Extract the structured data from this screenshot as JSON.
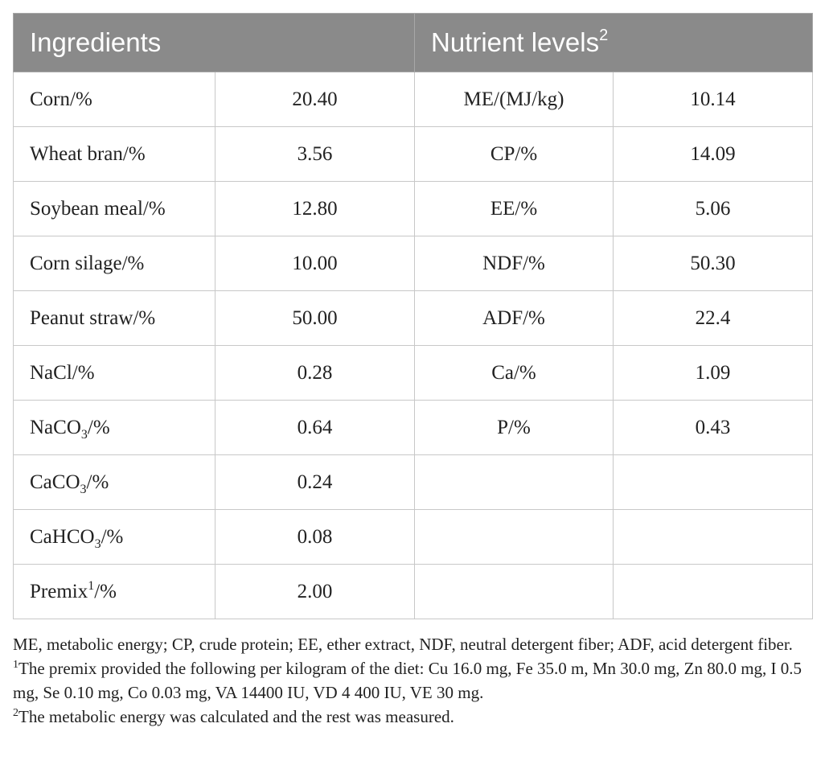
{
  "header": {
    "ingredients": "Ingredients",
    "nutrient_levels": "Nutrient levels",
    "nutrient_levels_sup": "2"
  },
  "rows": [
    {
      "ingredient": "Corn/%",
      "ingredient_sub": "",
      "ingredient_after": "",
      "ingredient_sup": "",
      "value": "20.40",
      "nutrient": "ME/(MJ/kg)",
      "nutrient_value": "10.14"
    },
    {
      "ingredient": "Wheat bran/%",
      "ingredient_sub": "",
      "ingredient_after": "",
      "ingredient_sup": "",
      "value": "3.56",
      "nutrient": "CP/%",
      "nutrient_value": "14.09"
    },
    {
      "ingredient": "Soybean meal/%",
      "ingredient_sub": "",
      "ingredient_after": "",
      "ingredient_sup": "",
      "value": "12.80",
      "nutrient": "EE/%",
      "nutrient_value": "5.06"
    },
    {
      "ingredient": "Corn silage/%",
      "ingredient_sub": "",
      "ingredient_after": "",
      "ingredient_sup": "",
      "value": "10.00",
      "nutrient": "NDF/%",
      "nutrient_value": "50.30"
    },
    {
      "ingredient": "Peanut straw/%",
      "ingredient_sub": "",
      "ingredient_after": "",
      "ingredient_sup": "",
      "value": "50.00",
      "nutrient": "ADF/%",
      "nutrient_value": "22.4"
    },
    {
      "ingredient": "NaCl/%",
      "ingredient_sub": "",
      "ingredient_after": "",
      "ingredient_sup": "",
      "value": "0.28",
      "nutrient": "Ca/%",
      "nutrient_value": "1.09"
    },
    {
      "ingredient": "NaCO",
      "ingredient_sub": "3",
      "ingredient_after": "/%",
      "ingredient_sup": "",
      "value": "0.64",
      "nutrient": "P/%",
      "nutrient_value": "0.43"
    },
    {
      "ingredient": "CaCO",
      "ingredient_sub": "3",
      "ingredient_after": "/%",
      "ingredient_sup": "",
      "value": "0.24",
      "nutrient": "",
      "nutrient_value": ""
    },
    {
      "ingredient": "CaHCO",
      "ingredient_sub": "3",
      "ingredient_after": "/%",
      "ingredient_sup": "",
      "value": "0.08",
      "nutrient": "",
      "nutrient_value": ""
    },
    {
      "ingredient": "Premix",
      "ingredient_sub": "",
      "ingredient_after": "/%",
      "ingredient_sup": "1",
      "value": "2.00",
      "nutrient": "",
      "nutrient_value": ""
    }
  ],
  "notes": {
    "abbreviations": "ME, metabolic energy; CP, crude protein; EE, ether extract, NDF, neutral detergent fiber; ADF, acid detergent fiber.",
    "footnote1_mark": "1",
    "footnote1_text": "The premix provided the following per kilogram of the diet: Cu 16.0 mg, Fe 35.0 m, Mn 30.0 mg, Zn 80.0 mg, I 0.5 mg, Se 0.10 mg, Co 0.03 mg, VA 14400 IU, VD 4 400 IU, VE 30 mg.",
    "footnote2_mark": "2",
    "footnote2_text": "The metabolic energy was calculated and the rest was measured."
  }
}
